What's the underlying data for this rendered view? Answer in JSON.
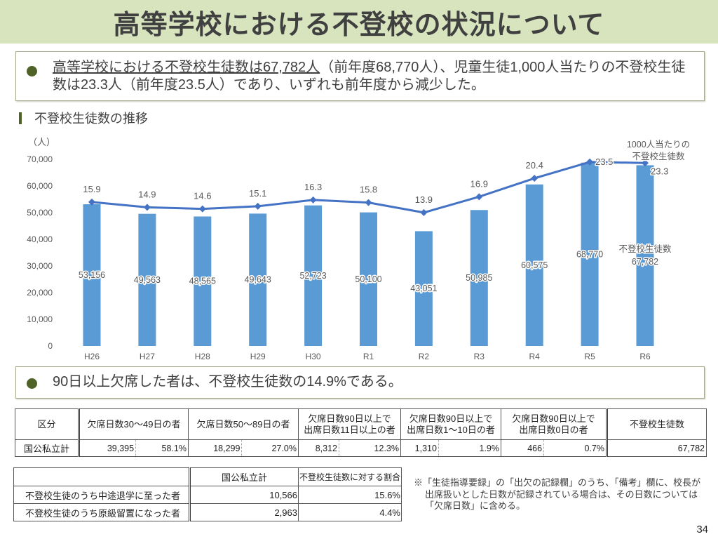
{
  "header": {
    "title": "高等学校における不登校の状況について"
  },
  "summary1": {
    "underlined": "高等学校における不登校生徒数は67,782人",
    "rest": "（前年度68,770人）、児童生徒1,000人当たりの不登校生徒数は23.3人（前年度23.5人）であり、いずれも前年度から減少した。"
  },
  "section": {
    "title": "不登校生徒数の推移"
  },
  "chart_data": {
    "type": "bar+line",
    "title": "不登校生徒数の推移",
    "ylabel": "（人）",
    "xlabel": "",
    "categories": [
      "H26",
      "H27",
      "H28",
      "H29",
      "H30",
      "R1",
      "R2",
      "R3",
      "R4",
      "R5",
      "R6"
    ],
    "ylim": [
      0,
      70000
    ],
    "yticks": [
      0,
      10000,
      20000,
      30000,
      40000,
      50000,
      60000,
      70000
    ],
    "ytick_labels": [
      "0",
      "10,000",
      "20,000",
      "30,000",
      "40,000",
      "50,000",
      "60,000",
      "70,000"
    ],
    "y2lim": [
      -11.4,
      24.0
    ],
    "y2_visible": false,
    "grid": false,
    "series": [
      {
        "name": "不登校生徒数",
        "type": "bar",
        "color": "#5b9bd5",
        "values": [
          53156,
          49563,
          48565,
          49643,
          52723,
          50100,
          43051,
          50985,
          60575,
          68770,
          67782
        ],
        "value_labels": [
          "53,156",
          "49,563",
          "48,565",
          "49,643",
          "52,723",
          "50,100",
          "43,051",
          "50,985",
          "60,575",
          "68,770",
          "67,782"
        ],
        "label_lines": [
          "不登校生徒数"
        ]
      },
      {
        "name": "1000人当たりの不登校生徒数",
        "type": "line",
        "color": "#4472c4",
        "axis": "secondary",
        "values": [
          15.9,
          14.9,
          14.6,
          15.1,
          16.3,
          15.8,
          13.9,
          16.9,
          20.4,
          23.5,
          23.3
        ],
        "value_labels": [
          "15.9",
          "14.9",
          "14.6",
          "15.1",
          "16.3",
          "15.8",
          "13.9",
          "16.9",
          "20.4",
          "23.5",
          "23.3"
        ],
        "label_lines": [
          "1000人当たりの",
          "不登校生徒数"
        ]
      }
    ]
  },
  "summary2": {
    "text": "90日以上欠席した者は、不登校生徒数の14.9%である。"
  },
  "table1": {
    "headers": [
      "区分",
      "欠席日数30～49日の者",
      "欠席日数50～89日の者",
      "欠席日数90日以上で\n出席日数11日以上の者",
      "欠席日数90日以上で\n出席日数1～10日の者",
      "欠席日数90日以上で\n出席日数0日の者",
      "不登校生徒数"
    ],
    "row": {
      "label": "国公私立計",
      "cells": [
        {
          "count": "39,395",
          "pct": "58.1%"
        },
        {
          "count": "18,299",
          "pct": "27.0%"
        },
        {
          "count": "8,312",
          "pct": "12.3%"
        },
        {
          "count": "1,310",
          "pct": "1.9%"
        },
        {
          "count": "466",
          "pct": "0.7%"
        }
      ],
      "total": "67,782"
    }
  },
  "table2": {
    "headers": [
      "",
      "国公私立計",
      "不登校生徒数に対する割合"
    ],
    "rows": [
      {
        "label": "不登校生徒のうち中途退学に至った者",
        "count": "10,566",
        "pct": "15.6%"
      },
      {
        "label": "不登校生徒のうち原級留置になった者",
        "count": "2,963",
        "pct": "4.4%"
      }
    ]
  },
  "note": {
    "text": "※「生徒指導要録」の「出欠の記録欄」のうち、「備考」欄に、校長が出席扱いとした日数が記録されている場合は、その日数については「欠席日数」に含める。"
  },
  "page_number": "34"
}
